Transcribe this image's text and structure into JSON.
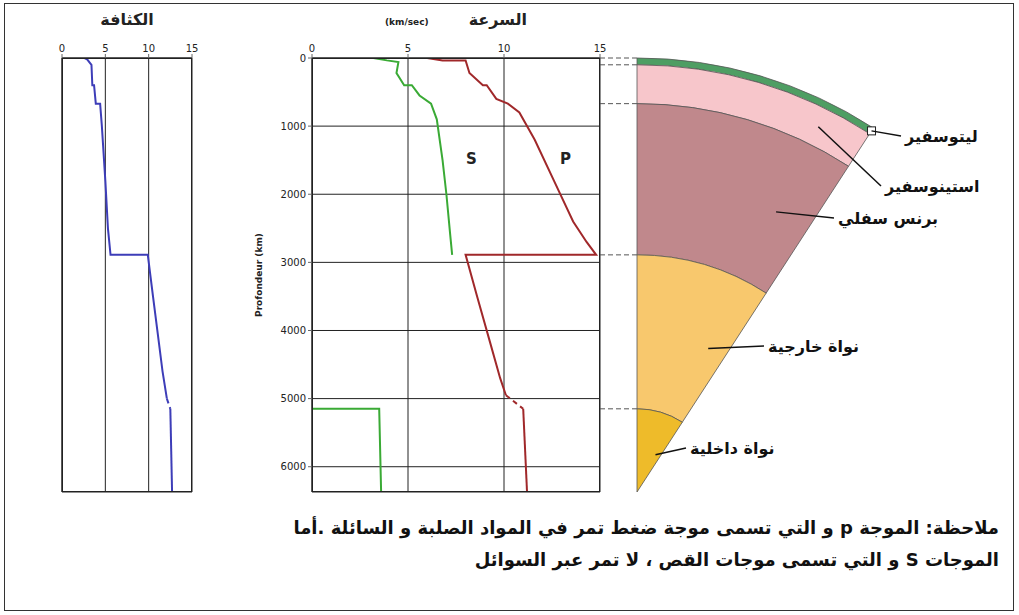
{
  "chart_data": [
    {
      "type": "line",
      "title": "الكثافة",
      "xlim": [
        0,
        15
      ],
      "xticks": [
        0,
        5,
        10,
        15
      ],
      "ylim": [
        0,
        6371
      ],
      "yticks": [
        0,
        1000,
        2000,
        3000,
        4000,
        5000,
        6000
      ],
      "grid": true,
      "tick_labels": "x",
      "series": [
        {
          "color": "#3d3db8",
          "x": [
            2.6,
            2.9,
            3.4,
            3.5,
            3.7,
            3.9,
            4.4,
            4.6,
            5.0,
            5.3,
            5.6,
            9.9,
            10.5,
            11.0,
            11.6,
            12.1,
            null,
            12.5,
            12.7
          ],
          "y": [
            0,
            20,
            100,
            400,
            400,
            670,
            670,
            1000,
            1800,
            2500,
            2890,
            2890,
            3500,
            4000,
            4600,
            5000,
            null,
            5150,
            6371
          ]
        },
        {
          "color": "#3d3db8",
          "line_style": "dashed",
          "x": [
            12.1,
            12.5
          ],
          "y": [
            5000,
            5150
          ]
        }
      ]
    },
    {
      "type": "line",
      "title": "السرعة",
      "xlabel": "(km/sec)",
      "ylabel": "Profondeur (km)",
      "xlim": [
        0,
        15
      ],
      "xticks": [
        0,
        5,
        10,
        15
      ],
      "ylim": [
        0,
        6371
      ],
      "yticks": [
        0,
        1000,
        2000,
        3000,
        4000,
        5000,
        6000
      ],
      "grid": true,
      "series": [
        {
          "name": "S",
          "color": "#3aaa35",
          "x": [
            3.2,
            3.9,
            4.5,
            4.4,
            4.8,
            5.2,
            5.6,
            6.2,
            6.5,
            6.8,
            7.0,
            7.2,
            7.3,
            null,
            0,
            3.5,
            3.6
          ],
          "y": [
            0,
            35,
            60,
            220,
            400,
            400,
            550,
            670,
            900,
            1500,
            2000,
            2600,
            2890,
            null,
            5150,
            5150,
            6371
          ]
        },
        {
          "name": "P",
          "color": "#a0282a",
          "x": [
            6.0,
            6.8,
            8.0,
            8.2,
            8.9,
            9.1,
            9.6,
            10.2,
            10.8,
            11.6,
            12.6,
            13.6,
            14.3,
            14.8,
            8.0,
            8.6,
            9.3,
            9.8,
            10.1,
            null,
            11.0,
            11.2
          ],
          "y": [
            0,
            35,
            35,
            220,
            400,
            400,
            600,
            670,
            800,
            1200,
            1800,
            2400,
            2700,
            2890,
            2890,
            3500,
            4200,
            4700,
            4950,
            null,
            5150,
            6371
          ]
        },
        {
          "color": "#a0282a",
          "line_style": "dashed",
          "x": [
            10.1,
            11.0
          ],
          "y": [
            4950,
            5150
          ]
        }
      ]
    }
  ],
  "diagram": {
    "layers": [
      {
        "label": "ليتوسفير",
        "top": 0,
        "color": "#4e9e63"
      },
      {
        "label": "استينوسفير",
        "top": 100,
        "color": "#f7c6cb"
      },
      {
        "label": "برنس سفلي",
        "top": 670,
        "color": "#c0888c"
      },
      {
        "label": "نواة خارجية",
        "top": 2890,
        "color": "#f8c86d"
      },
      {
        "label": "نواة داخلية",
        "top": 5150,
        "color": "#eebb2a"
      }
    ]
  },
  "note": [
    "ملاحظة: الموجة p و التي تسمى موجة ضغط تمر في المواد الصلبة و السائلة .أما",
    "الموجات S و التي تسمى موجات القص ، لا تمر عبر السوائل"
  ]
}
